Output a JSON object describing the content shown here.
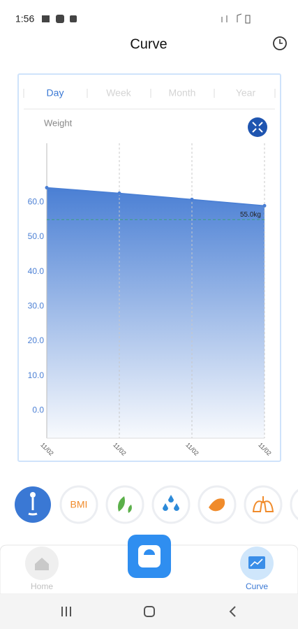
{
  "status_bar": {
    "time": "1:56"
  },
  "header": {
    "title": "Curve"
  },
  "tabs": [
    "Day",
    "Week",
    "Month",
    "Year"
  ],
  "chart_data": {
    "type": "area",
    "y_label": "Weight",
    "categories": [
      "11/02",
      "11/02",
      "11/02",
      "11/02"
    ],
    "values": [
      64.2,
      62.6,
      60.8,
      59.0
    ],
    "color": "#4a7fd4",
    "ylim": [
      -8,
      77
    ],
    "yticks": [
      {
        "value": 0,
        "label": "0.0"
      },
      {
        "value": 10,
        "label": "10.0"
      },
      {
        "value": 20,
        "label": "20.0"
      },
      {
        "value": 30,
        "label": "30.0"
      },
      {
        "value": 40,
        "label": "40.0"
      },
      {
        "value": 50,
        "label": "50.0"
      },
      {
        "value": 60,
        "label": "60.0"
      }
    ],
    "target": {
      "value": 55,
      "label": "55.0kg"
    }
  },
  "metrics": [
    "BMI"
  ],
  "nav": [
    "Home",
    "Curve"
  ]
}
